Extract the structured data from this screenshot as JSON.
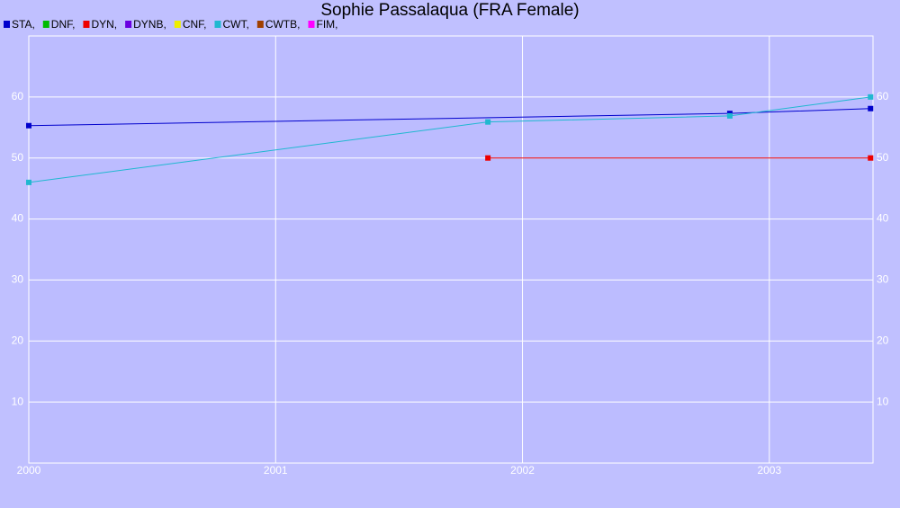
{
  "chart_data": {
    "type": "line",
    "title": "Sophie Passalaqua (FRA Female)",
    "xlim": [
      2000,
      2003.42
    ],
    "xticks": [
      2000,
      2001,
      2002,
      2003
    ],
    "ylim": [
      0,
      70
    ],
    "yticks": [
      10,
      20,
      30,
      40,
      50,
      60
    ],
    "grid": true,
    "series": [
      {
        "name": "STA,",
        "color": "#0000cc",
        "x": [
          2000.0,
          2002.84,
          2003.41
        ],
        "values": [
          55.3,
          57.3,
          58.1
        ]
      },
      {
        "name": "DNF,",
        "color": "#00bb00",
        "x": [],
        "values": []
      },
      {
        "name": "DYN,",
        "color": "#ee0000",
        "x": [
          2001.86,
          2003.41
        ],
        "values": [
          50,
          50
        ]
      },
      {
        "name": "DYNB,",
        "color": "#6a00e0",
        "x": [],
        "values": []
      },
      {
        "name": "CNF,",
        "color": "#eeee00",
        "x": [],
        "values": []
      },
      {
        "name": "CWT,",
        "color": "#20b8d0",
        "x": [
          2000.0,
          2001.86,
          2002.84,
          2003.41
        ],
        "values": [
          46,
          55.9,
          56.9,
          60
        ]
      },
      {
        "name": "CWTB,",
        "color": "#a04000",
        "x": [],
        "values": []
      },
      {
        "name": "FIM,",
        "color": "#ff00ff",
        "x": [],
        "values": []
      }
    ]
  }
}
